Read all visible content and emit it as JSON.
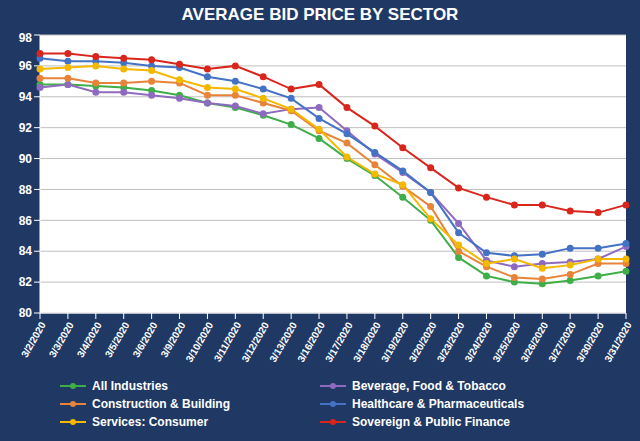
{
  "chart_data": {
    "type": "line",
    "title": "AVERAGE BID PRICE BY SECTOR",
    "categories": [
      "3/2/2020",
      "3/3/2020",
      "3/4/2020",
      "3/5/2020",
      "3/6/2020",
      "3/9/2020",
      "3/10/2020",
      "3/11/2020",
      "3/12/2020",
      "3/13/2020",
      "3/16/2020",
      "3/17/2020",
      "3/18/2020",
      "3/19/2020",
      "3/20/2020",
      "3/23/2020",
      "3/24/2020",
      "3/25/2020",
      "3/26/2020",
      "3/27/2020",
      "3/30/2020",
      "3/31/2020"
    ],
    "series": [
      {
        "name": "All Industries",
        "color": "#3fae49",
        "values": [
          94.8,
          94.8,
          94.7,
          94.6,
          94.4,
          94.1,
          93.6,
          93.3,
          92.8,
          92.2,
          91.3,
          90.0,
          88.9,
          87.5,
          86.0,
          83.6,
          82.4,
          82.0,
          81.9,
          82.1,
          82.4,
          82.7
        ]
      },
      {
        "name": "Beverage, Food & Tobacco",
        "color": "#8e6bbf",
        "values": [
          94.6,
          94.8,
          94.3,
          94.3,
          94.1,
          93.9,
          93.6,
          93.4,
          92.9,
          93.2,
          93.3,
          91.8,
          90.3,
          89.1,
          87.8,
          85.8,
          83.4,
          83.0,
          83.2,
          83.3,
          83.5,
          84.3
        ]
      },
      {
        "name": "Construction & Building",
        "color": "#e8833a",
        "values": [
          95.2,
          95.2,
          94.9,
          94.9,
          95.0,
          94.9,
          94.1,
          94.1,
          93.6,
          93.1,
          91.8,
          91.0,
          89.6,
          88.2,
          86.9,
          84.0,
          83.0,
          82.3,
          82.2,
          82.5,
          83.2,
          83.2
        ]
      },
      {
        "name": "Healthcare & Pharmaceuticals",
        "color": "#4472c4",
        "values": [
          96.5,
          96.3,
          96.3,
          96.2,
          96.0,
          95.9,
          95.3,
          95.0,
          94.5,
          93.9,
          92.6,
          91.6,
          90.4,
          89.2,
          87.8,
          85.2,
          83.9,
          83.7,
          83.8,
          84.2,
          84.2,
          84.5
        ]
      },
      {
        "name": "Services: Consumer",
        "color": "#f5b800",
        "values": [
          95.8,
          95.9,
          96.0,
          95.8,
          95.7,
          95.1,
          94.6,
          94.5,
          93.9,
          93.2,
          91.9,
          90.1,
          89.0,
          88.3,
          86.1,
          84.4,
          83.2,
          83.5,
          82.9,
          83.1,
          83.5,
          83.5
        ]
      },
      {
        "name": "Sovereign & Public Finance",
        "color": "#d9261c",
        "values": [
          96.8,
          96.8,
          96.6,
          96.5,
          96.4,
          96.1,
          95.8,
          96.0,
          95.3,
          94.5,
          94.8,
          93.3,
          92.1,
          90.7,
          89.4,
          88.1,
          87.5,
          87.0,
          87.0,
          86.6,
          86.5,
          87.0
        ]
      }
    ],
    "ylim": [
      80,
      98
    ],
    "yticks": [
      80,
      82,
      84,
      86,
      88,
      90,
      92,
      94,
      96,
      98
    ],
    "grid": true,
    "marker": "circle",
    "legend": "bottom"
  }
}
